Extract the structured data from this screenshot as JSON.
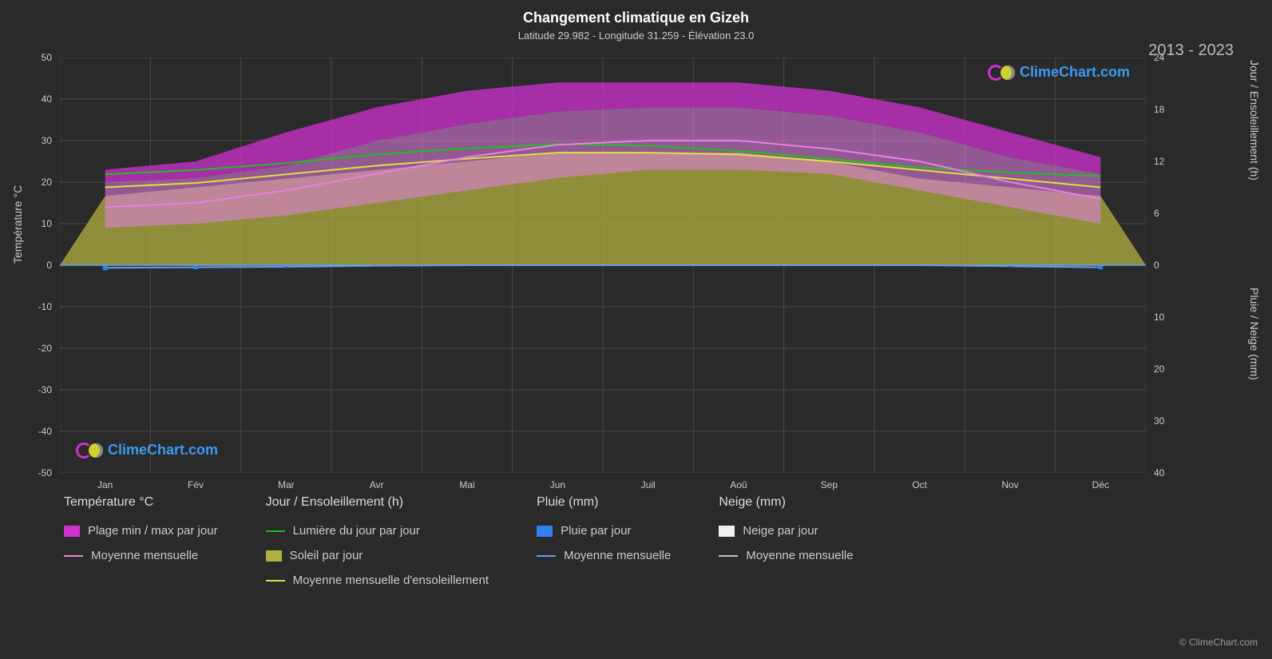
{
  "title": "Changement climatique en Gizeh",
  "subtitle": "Latitude 29.982 - Longitude 31.259 - Élévation 23.0",
  "year_range": "2013 - 2023",
  "watermark_text": "ClimeChart.com",
  "watermark_color": "#3b9bf0",
  "copyright": "© ClimeChart.com",
  "background_color": "#2a2a2a",
  "grid_color": "#4a4a4a",
  "text_color": "#cccccc",
  "y_left": {
    "label": "Température °C",
    "min": -50,
    "max": 50,
    "step": 10,
    "ticks": [
      -50,
      -40,
      -30,
      -20,
      -10,
      0,
      10,
      20,
      30,
      40,
      50
    ]
  },
  "y_right_top": {
    "label": "Jour / Ensoleillement (h)",
    "min": 0,
    "max": 24,
    "step": 6,
    "ticks": [
      0,
      6,
      12,
      18,
      24
    ]
  },
  "y_right_bottom": {
    "label": "Pluie / Neige (mm)",
    "min": 0,
    "max": 40,
    "step": 10,
    "ticks": [
      0,
      10,
      20,
      30,
      40
    ]
  },
  "x_axis": {
    "months": [
      "Jan",
      "Fév",
      "Mar",
      "Avr",
      "Mai",
      "Jun",
      "Juil",
      "Aoû",
      "Sep",
      "Oct",
      "Nov",
      "Déc"
    ]
  },
  "series": {
    "temp_range": {
      "color_fill": "#d030d0",
      "color_fill_light": "#e880e8",
      "max": [
        20,
        21,
        24,
        30,
        34,
        37,
        38,
        38,
        36,
        32,
        26,
        22
      ],
      "min": [
        9,
        10,
        12,
        15,
        18,
        21,
        23,
        23,
        22,
        18,
        14,
        10
      ],
      "spike_max": [
        23,
        25,
        32,
        38,
        42,
        44,
        44,
        44,
        42,
        38,
        32,
        26
      ]
    },
    "temp_mean": {
      "color": "#e880e8",
      "values": [
        14,
        15,
        18,
        22,
        26,
        29,
        30,
        30,
        28,
        25,
        20,
        16
      ]
    },
    "daylight": {
      "color": "#20c020",
      "values": [
        10.5,
        11,
        11.8,
        12.8,
        13.5,
        14,
        13.8,
        13.2,
        12.3,
        11.3,
        10.7,
        10.3
      ]
    },
    "sunshine_area": {
      "color": "#b0b040",
      "max": [
        8,
        9,
        10,
        11,
        12,
        13,
        13,
        13,
        12,
        10,
        9,
        8
      ]
    },
    "sunshine_mean": {
      "color": "#e0e040",
      "values": [
        9,
        9.5,
        10.5,
        11.5,
        12.3,
        13,
        13,
        12.8,
        12,
        11,
        10,
        9
      ]
    },
    "rain": {
      "color": "#3080f0",
      "values": [
        1,
        0.8,
        0.5,
        0.2,
        0.1,
        0,
        0,
        0,
        0,
        0.1,
        0.3,
        0.8
      ]
    },
    "rain_mean": {
      "color": "#60a0f0",
      "values": [
        0.5,
        0.4,
        0.3,
        0.1,
        0,
        0,
        0,
        0,
        0,
        0,
        0.2,
        0.4
      ]
    },
    "snow": {
      "color": "#f0f0f0",
      "values": [
        0,
        0,
        0,
        0,
        0,
        0,
        0,
        0,
        0,
        0,
        0,
        0
      ]
    },
    "snow_mean": {
      "color": "#c0c0c0",
      "values": [
        0,
        0,
        0,
        0,
        0,
        0,
        0,
        0,
        0,
        0,
        0,
        0
      ]
    }
  },
  "legend": {
    "columns": [
      {
        "header": "Température °C",
        "items": [
          {
            "type": "swatch",
            "color": "#d030d0",
            "label": "Plage min / max par jour"
          },
          {
            "type": "line",
            "color": "#e880e8",
            "label": "Moyenne mensuelle"
          }
        ]
      },
      {
        "header": "Jour / Ensoleillement (h)",
        "items": [
          {
            "type": "line",
            "color": "#20c020",
            "label": "Lumière du jour par jour"
          },
          {
            "type": "swatch",
            "color": "#b0b040",
            "label": "Soleil par jour"
          },
          {
            "type": "line",
            "color": "#e0e040",
            "label": "Moyenne mensuelle d'ensoleillement"
          }
        ]
      },
      {
        "header": "Pluie (mm)",
        "items": [
          {
            "type": "swatch",
            "color": "#3080f0",
            "label": "Pluie par jour"
          },
          {
            "type": "line",
            "color": "#60a0f0",
            "label": "Moyenne mensuelle"
          }
        ]
      },
      {
        "header": "Neige (mm)",
        "items": [
          {
            "type": "swatch",
            "color": "#f0f0f0",
            "label": "Neige par jour"
          },
          {
            "type": "line",
            "color": "#c0c0c0",
            "label": "Moyenne mensuelle"
          }
        ]
      }
    ]
  }
}
